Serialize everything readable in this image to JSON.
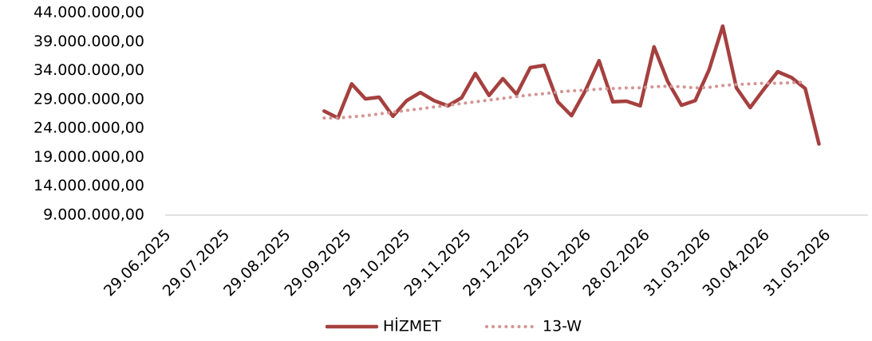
{
  "chart_data": {
    "type": "line",
    "x": [
      "18.09.2025",
      "25.09.2025",
      "02.10.2025",
      "09.10.2025",
      "16.10.2025",
      "23.10.2025",
      "30.10.2025",
      "06.11.2025",
      "13.11.2025",
      "20.11.2025",
      "27.11.2025",
      "04.12.2025",
      "11.12.2025",
      "18.12.2025",
      "25.12.2025",
      "01.01.2026",
      "08.01.2026",
      "15.01.2026",
      "22.01.2026",
      "29.01.2026",
      "05.02.2026",
      "12.02.2026",
      "19.02.2026",
      "26.02.2026",
      "05.03.2026",
      "12.03.2026",
      "19.03.2026",
      "26.03.2026",
      "02.04.2026",
      "09.04.2026",
      "16.04.2026",
      "23.04.2026",
      "30.04.2026",
      "07.05.2026",
      "14.05.2026",
      "21.05.2026",
      "28.05.2026"
    ],
    "series": [
      {
        "name": "HİZMET",
        "color": "#a5403f",
        "style": "solid",
        "values": [
          27000000,
          25800000,
          31700000,
          29100000,
          29400000,
          26100000,
          28800000,
          30200000,
          28800000,
          27900000,
          29300000,
          33500000,
          29700000,
          32600000,
          29900000,
          34500000,
          34900000,
          28600000,
          26200000,
          30500000,
          35700000,
          28600000,
          28700000,
          27900000,
          38100000,
          32100000,
          28000000,
          28800000,
          34100000,
          41700000,
          31000000,
          27600000,
          30800000,
          33800000,
          32800000,
          30900000,
          21300000
        ]
      },
      {
        "name": "13-W",
        "color": "#d39593",
        "style": "dotted",
        "values": [
          25800000,
          25800000,
          26000000,
          26200000,
          26500000,
          26800000,
          27100000,
          27400000,
          27700000,
          28000000,
          28300000,
          28600000,
          28900000,
          29200000,
          29500000,
          29800000,
          30000000,
          30300000,
          30500000,
          30600000,
          30800000,
          30900000,
          31000000,
          31000000,
          31200000,
          31300000,
          31200000,
          31000000,
          31100000,
          31400000,
          31600000,
          31700000,
          31800000,
          31800000,
          31900000,
          32000000,
          null
        ]
      }
    ],
    "xlim": [
      "29.06.2025",
      "22.06.2026"
    ],
    "xticks": [
      "29.06.2025",
      "29.07.2025",
      "29.08.2025",
      "29.09.2025",
      "29.10.2025",
      "29.11.2025",
      "29.12.2025",
      "29.01.2026",
      "28.02.2026",
      "31.03.2026",
      "30.04.2026",
      "31.05.2026"
    ],
    "ylim": [
      9000000,
      44000000
    ],
    "yticks": [
      {
        "value": 9000000,
        "label": "9.000.000,00"
      },
      {
        "value": 14000000,
        "label": "14.000.000,00"
      },
      {
        "value": 19000000,
        "label": "19.000.000,00"
      },
      {
        "value": 24000000,
        "label": "24.000.000,00"
      },
      {
        "value": 29000000,
        "label": "29.000.000,00"
      },
      {
        "value": 34000000,
        "label": "34.000.000,00"
      },
      {
        "value": 39000000,
        "label": "39.000.000,00"
      },
      {
        "value": 44000000,
        "label": "44.000.000,00"
      }
    ],
    "legend": "bottom"
  }
}
